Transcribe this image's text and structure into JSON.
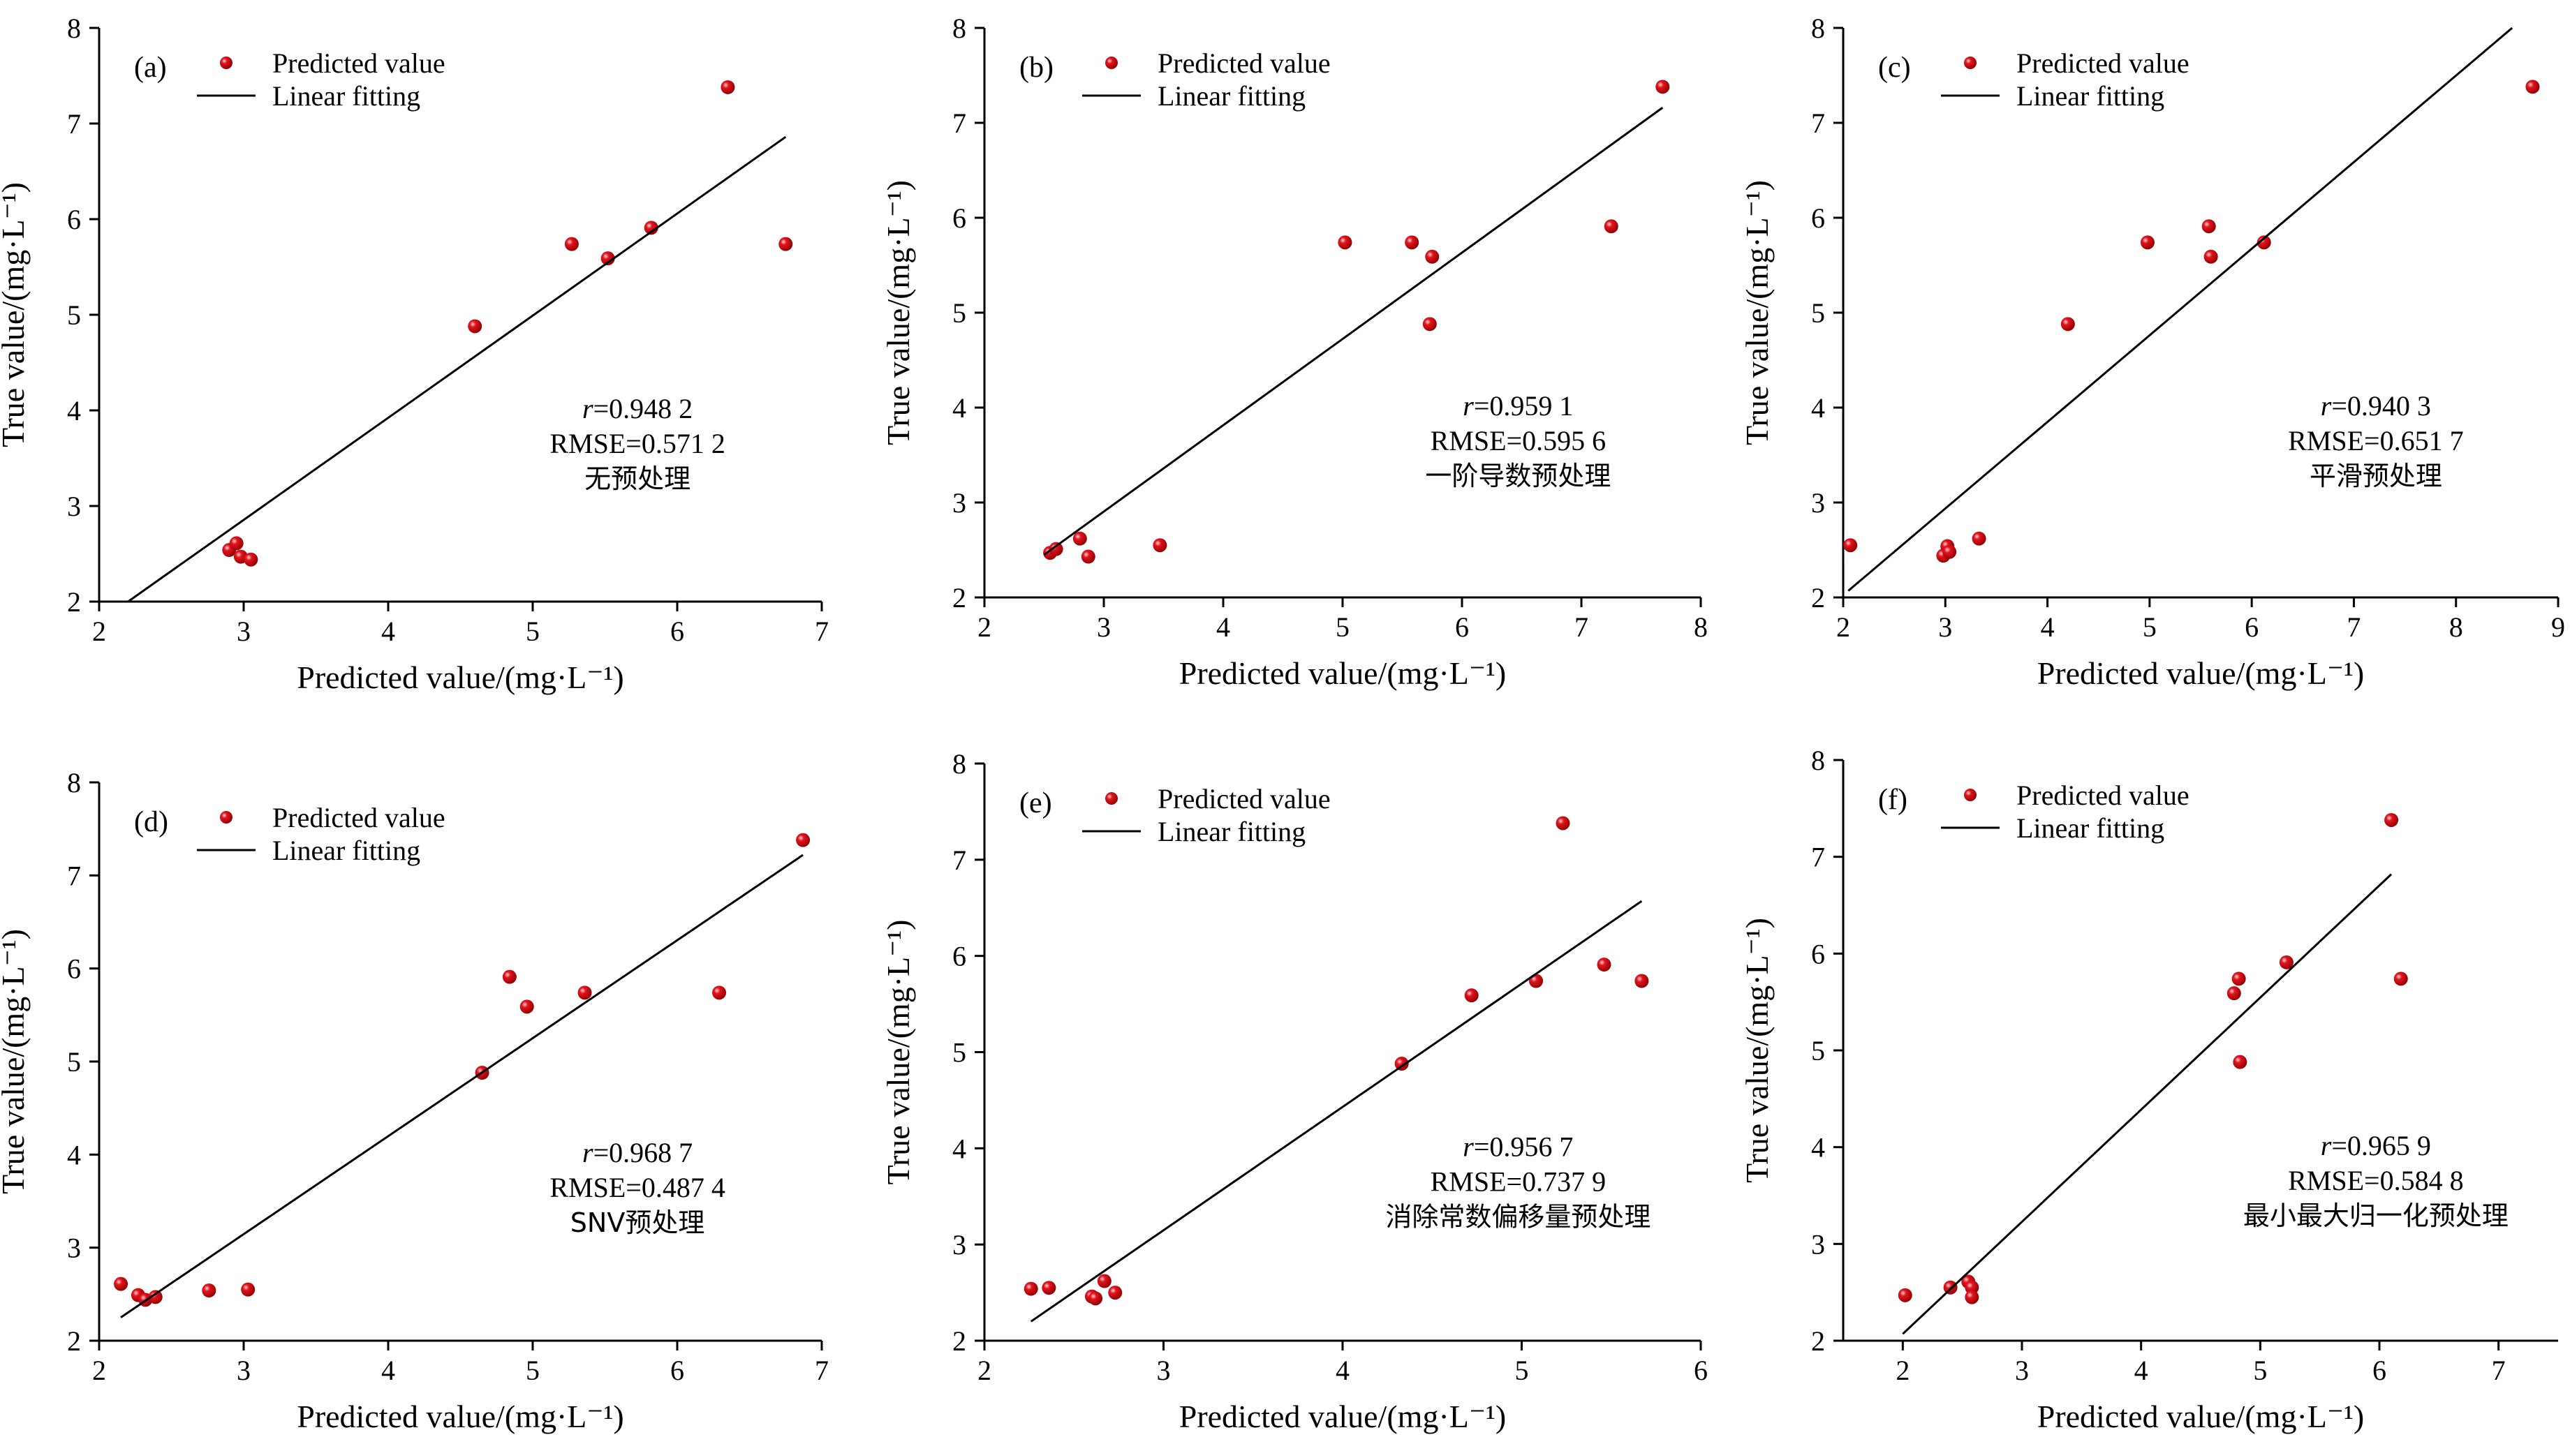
{
  "legend": {
    "point_label": "Predicted value",
    "line_label": "Linear fitting"
  },
  "colors": {
    "point": "#e3141f",
    "line": "#000000",
    "axis": "#000000"
  },
  "chart_data": [
    {
      "id": "a",
      "type": "scatter",
      "panel_label": "(a)",
      "xlabel": "Predicted value/(mg·L⁻¹)",
      "ylabel": "True value/(mg·L⁻¹)",
      "xlim": [
        2,
        7
      ],
      "ylim": [
        2,
        8
      ],
      "xticks": [
        2,
        3,
        4,
        5,
        6,
        7
      ],
      "yticks": [
        2,
        3,
        4,
        5,
        6,
        7,
        8
      ],
      "grid": false,
      "legend_position": "top-left",
      "series": [
        {
          "name": "Predicted value",
          "type": "scatter",
          "x": [
            2.9,
            2.95,
            2.98,
            3.05,
            4.6,
            5.27,
            5.52,
            5.82,
            6.35,
            6.75
          ],
          "y": [
            2.54,
            2.61,
            2.47,
            2.44,
            4.88,
            5.74,
            5.59,
            5.91,
            7.38,
            5.74
          ]
        },
        {
          "name": "Linear fitting",
          "type": "line",
          "x": [
            2.2,
            6.75
          ],
          "y": [
            2.0,
            6.86
          ]
        }
      ],
      "annotation": {
        "r_symbol": "r",
        "r_value": "=0.948 2",
        "rmse": "RMSE=0.571 2",
        "method": "无预处理"
      }
    },
    {
      "id": "b",
      "type": "scatter",
      "panel_label": "(b)",
      "xlabel": "Predicted value/(mg·L⁻¹)",
      "ylabel": "True value/(mg·L⁻¹)",
      "xlim": [
        2,
        8
      ],
      "ylim": [
        2,
        8
      ],
      "xticks": [
        2,
        3,
        4,
        5,
        6,
        7,
        8
      ],
      "yticks": [
        2,
        3,
        4,
        5,
        6,
        7,
        8
      ],
      "grid": false,
      "legend_position": "top-left",
      "series": [
        {
          "name": "Predicted value",
          "type": "scatter",
          "x": [
            2.55,
            2.6,
            2.8,
            2.87,
            3.47,
            5.02,
            5.58,
            5.75,
            5.73,
            7.25,
            7.68
          ],
          "y": [
            2.47,
            2.51,
            2.62,
            2.43,
            2.55,
            5.74,
            5.74,
            5.59,
            4.88,
            5.91,
            7.38
          ]
        },
        {
          "name": "Linear fitting",
          "type": "line",
          "x": [
            2.5,
            7.68
          ],
          "y": [
            2.45,
            7.16
          ]
        }
      ],
      "annotation": {
        "r_symbol": "r",
        "r_value": "=0.959 1",
        "rmse": "RMSE=0.595 6",
        "method": "一阶导数预处理"
      }
    },
    {
      "id": "c",
      "type": "scatter",
      "panel_label": "(c)",
      "xlabel": "Predicted value/(mg·L⁻¹)",
      "ylabel": "True value/(mg·L⁻¹)",
      "xlim": [
        2,
        9
      ],
      "ylim": [
        2,
        8
      ],
      "xticks": [
        2,
        3,
        4,
        5,
        6,
        7,
        8,
        9
      ],
      "yticks": [
        2,
        3,
        4,
        5,
        6,
        7,
        8
      ],
      "grid": false,
      "legend_position": "top-left",
      "series": [
        {
          "name": "Predicted value",
          "type": "scatter",
          "x": [
            2.07,
            2.98,
            3.02,
            3.04,
            3.33,
            4.2,
            4.98,
            5.58,
            5.6,
            6.12,
            8.75
          ],
          "y": [
            2.55,
            2.44,
            2.54,
            2.48,
            2.62,
            4.88,
            5.74,
            5.91,
            5.59,
            5.74,
            7.38
          ]
        },
        {
          "name": "Linear fitting",
          "type": "line",
          "x": [
            2.05,
            8.55
          ],
          "y": [
            2.07,
            8.0
          ]
        }
      ],
      "annotation": {
        "r_symbol": "r",
        "r_value": "=0.940 3",
        "rmse": "RMSE=0.651 7",
        "method": "平滑预处理"
      }
    },
    {
      "id": "d",
      "type": "scatter",
      "panel_label": "(d)",
      "xlabel": "Predicted value/(mg·L⁻¹)",
      "ylabel": "True value/(mg·L⁻¹)",
      "xlim": [
        2,
        7
      ],
      "ylim": [
        2,
        8
      ],
      "xticks": [
        2,
        3,
        4,
        5,
        6,
        7
      ],
      "yticks": [
        2,
        3,
        4,
        5,
        6,
        7,
        8
      ],
      "grid": false,
      "legend_position": "top-left",
      "series": [
        {
          "name": "Predicted value",
          "type": "scatter",
          "x": [
            2.15,
            2.27,
            2.32,
            2.39,
            2.76,
            3.03,
            4.65,
            4.84,
            4.96,
            5.36,
            6.29,
            6.87
          ],
          "y": [
            2.61,
            2.49,
            2.44,
            2.47,
            2.54,
            2.55,
            4.88,
            5.91,
            5.59,
            5.74,
            5.74,
            7.38
          ]
        },
        {
          "name": "Linear fitting",
          "type": "line",
          "x": [
            2.15,
            6.87
          ],
          "y": [
            2.25,
            7.22
          ]
        }
      ],
      "annotation": {
        "r_symbol": "r",
        "r_value": "=0.968 7",
        "rmse": "RMSE=0.487 4",
        "method": "SNV预处理"
      }
    },
    {
      "id": "e",
      "type": "scatter",
      "panel_label": "(e)",
      "xlabel": "Predicted value/(mg·L⁻¹)",
      "ylabel": "True value/(mg·L⁻¹)",
      "xlim": [
        2,
        6
      ],
      "ylim": [
        2,
        8
      ],
      "xticks": [
        2,
        3,
        4,
        5,
        6
      ],
      "yticks": [
        2,
        3,
        4,
        5,
        6,
        7,
        8
      ],
      "grid": false,
      "legend_position": "top-left",
      "series": [
        {
          "name": "Predicted value",
          "type": "scatter",
          "x": [
            2.26,
            2.36,
            2.6,
            2.62,
            2.67,
            2.73,
            4.33,
            4.72,
            5.08,
            5.23,
            5.46,
            5.67
          ],
          "y": [
            2.54,
            2.55,
            2.46,
            2.44,
            2.62,
            2.5,
            4.88,
            5.59,
            5.74,
            7.38,
            5.91,
            5.74
          ]
        },
        {
          "name": "Linear fitting",
          "type": "line",
          "x": [
            2.26,
            5.67
          ],
          "y": [
            2.2,
            6.57
          ]
        }
      ],
      "annotation": {
        "r_symbol": "r",
        "r_value": "=0.956 7",
        "rmse": "RMSE=0.737 9",
        "method": "消除常数偏移量预处理"
      }
    },
    {
      "id": "f",
      "type": "scatter",
      "panel_label": "(f)",
      "xlabel": "Predicted value/(mg·L⁻¹)",
      "ylabel": "True value/(mg·L⁻¹)",
      "xlim": [
        1.5,
        7.5
      ],
      "ylim": [
        2,
        8
      ],
      "xticks": [
        2,
        3,
        4,
        5,
        6,
        7
      ],
      "yticks": [
        2,
        3,
        4,
        5,
        6,
        7,
        8
      ],
      "grid": false,
      "legend_position": "top-left",
      "series": [
        {
          "name": "Predicted value",
          "type": "scatter",
          "x": [
            2.02,
            2.4,
            2.55,
            2.58,
            2.58,
            4.78,
            4.82,
            4.83,
            5.22,
            6.1,
            6.18
          ],
          "y": [
            2.47,
            2.55,
            2.61,
            2.55,
            2.45,
            5.59,
            5.74,
            4.88,
            5.91,
            7.38,
            5.74
          ]
        },
        {
          "name": "Linear fitting",
          "type": "line",
          "x": [
            2.0,
            6.1
          ],
          "y": [
            2.07,
            6.82
          ]
        }
      ],
      "annotation": {
        "r_symbol": "r",
        "r_value": "=0.965 9",
        "rmse": "RMSE=0.584 8",
        "method": "最小最大归一化预处理"
      }
    }
  ]
}
